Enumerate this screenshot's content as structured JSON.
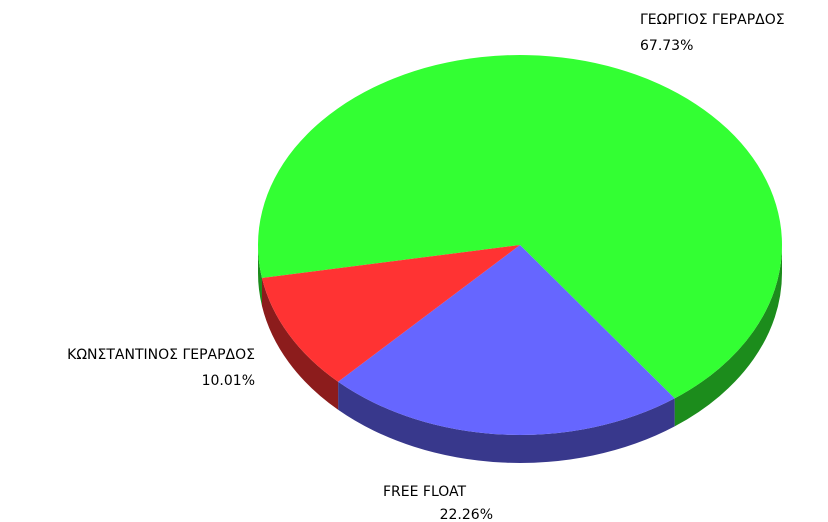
{
  "chart_data": {
    "type": "pie3d",
    "categories": [
      "ΓΕΩΡΓΙΟΣ ΓΕΡΑΡΔΟΣ",
      "FREE FLOAT",
      "ΚΩΝΣΤΑΝΤΙΝΟΣ ΓΕΡΑΡΔΟΣ"
    ],
    "values": [
      67.73,
      22.26,
      10.01
    ],
    "value_labels": [
      "67.73%",
      "22.26%",
      "10.01%"
    ],
    "colors": [
      "#33ff33",
      "#6666ff",
      "#ff3333"
    ]
  }
}
